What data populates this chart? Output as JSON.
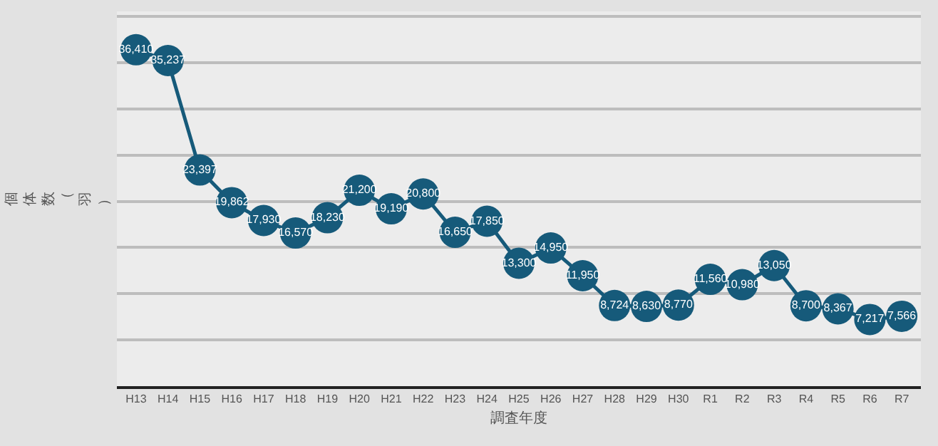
{
  "chart_data": {
    "type": "line",
    "xlabel": "調査年度",
    "ylabel": "個体数（羽）",
    "categories": [
      "H13",
      "H14",
      "H15",
      "H16",
      "H17",
      "H18",
      "H19",
      "H20",
      "H21",
      "H22",
      "H23",
      "H24",
      "H25",
      "H26",
      "H27",
      "H28",
      "H29",
      "H30",
      "R1",
      "R2",
      "R3",
      "R4",
      "R5",
      "R6",
      "R7"
    ],
    "series": [
      {
        "color": "#165a7a",
        "values": [
          36410,
          35237,
          23397,
          19862,
          17930,
          16570,
          18230,
          21200,
          19190,
          20800,
          16650,
          17850,
          13300,
          14950,
          11950,
          8724,
          8630,
          8770,
          11560,
          10980,
          13050,
          8700,
          8367,
          7217,
          7566
        ],
        "value_labels": [
          "36,410",
          "35,237",
          "23,397",
          "19,862",
          "17,930",
          "16,570",
          "18,230",
          "21,200",
          "19,190",
          "20,800",
          "16,650",
          "17,850",
          "13,300",
          "14,950",
          "11,950",
          "8,724",
          "8,630",
          "8,770",
          "11,560",
          "10,980",
          "13,050",
          "8,700",
          "8,367",
          "7,217",
          "7,566"
        ]
      }
    ],
    "tick_labels": "x",
    "grid": "y",
    "marker": "circle",
    "line_style": "solid"
  }
}
